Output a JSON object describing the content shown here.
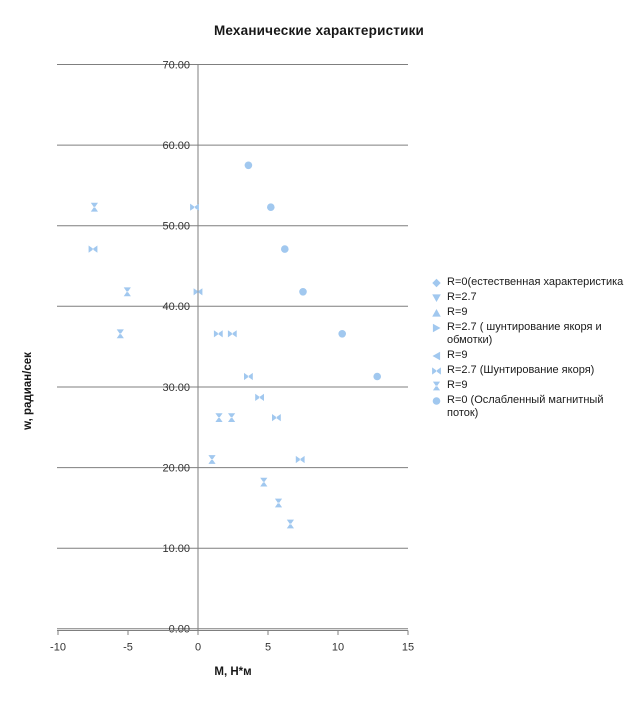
{
  "page": {
    "title": "Механические характеристики"
  },
  "chart_data": {
    "type": "scatter",
    "title": "Механические характеристики",
    "xlabel": "M, Н*м",
    "ylabel": "w, радиан/сек",
    "xlim": [
      -10,
      15
    ],
    "ylim": [
      0,
      70
    ],
    "x_ticks": {
      "values": [
        -10,
        -5,
        0,
        5,
        10,
        15
      ],
      "labels": [
        "-10",
        "-5",
        "0",
        "5",
        "10",
        "15"
      ]
    },
    "y_ticks": {
      "values": [
        0,
        10,
        20,
        30,
        40,
        50,
        60,
        70
      ],
      "labels": [
        "0.00",
        "10.00",
        "20.00",
        "30.00",
        "40.00",
        "50.00",
        "60.00",
        "70.00"
      ]
    },
    "grid": true,
    "legend_position": "right",
    "colors": {
      "marker": "#A1C8EF",
      "grid": "#7F7F7F",
      "axis": "#7F7F7F",
      "tick_text": "#333333",
      "title_text": "#171717"
    },
    "series": [
      {
        "name": "R=0(естественная характеристика",
        "marker": "diamond",
        "points": []
      },
      {
        "name": "R=2.7",
        "marker": "triangle-down",
        "points": []
      },
      {
        "name": "R=9",
        "marker": "triangle-up",
        "points": []
      },
      {
        "name": "R=2.7 ( шунтирование якоря и обмотки)",
        "marker": "triangle-right",
        "points": []
      },
      {
        "name": "R=9",
        "marker": "triangle-left",
        "points": []
      },
      {
        "name": "R=2.7 (Шунтирование якоря)",
        "marker": "bowtie-h",
        "points": [
          [
            -7.5,
            47.1
          ],
          [
            -0.25,
            52.3
          ],
          [
            0,
            41.8
          ],
          [
            1.45,
            36.6
          ],
          [
            2.45,
            36.6
          ],
          [
            3.6,
            31.3
          ],
          [
            4.4,
            28.7
          ],
          [
            5.6,
            26.2
          ],
          [
            7.3,
            21.0
          ]
        ]
      },
      {
        "name": "R=9",
        "marker": "bowtie-v",
        "points": [
          [
            -7.4,
            52.3
          ],
          [
            -5.05,
            41.8
          ],
          [
            -5.55,
            36.6
          ],
          [
            1.5,
            26.2
          ],
          [
            2.4,
            26.2
          ],
          [
            1.0,
            21.0
          ],
          [
            4.7,
            18.2
          ],
          [
            5.75,
            15.6
          ],
          [
            6.6,
            13.0
          ]
        ]
      },
      {
        "name": "R=0 (Ослабленный магнитный поток)",
        "marker": "circle",
        "points": [
          [
            3.6,
            57.5
          ],
          [
            5.2,
            52.3
          ],
          [
            6.2,
            47.1
          ],
          [
            7.5,
            41.8
          ],
          [
            10.3,
            36.6
          ],
          [
            12.8,
            31.3
          ]
        ]
      }
    ]
  }
}
